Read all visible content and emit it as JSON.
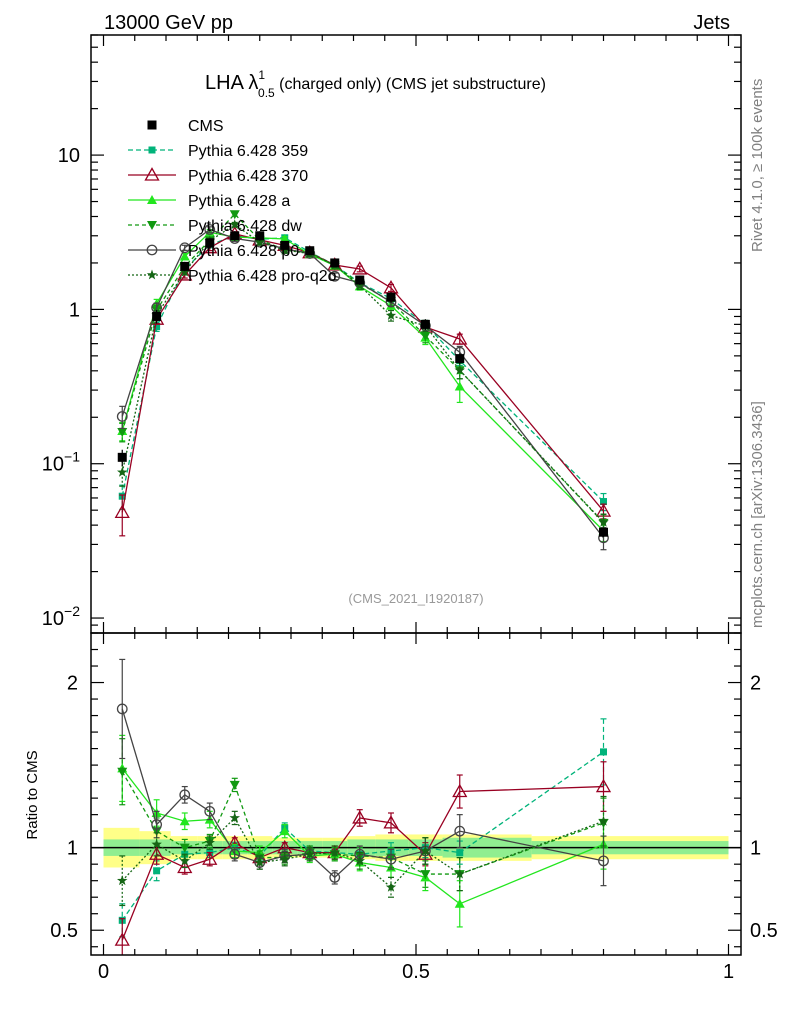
{
  "header": {
    "left": "13000 GeV pp",
    "right": "Jets"
  },
  "title": {
    "main": "LHA λ",
    "sup": "1",
    "sub": "0.5",
    "suffix": " (charged only) (CMS jet substructure)"
  },
  "side": {
    "rivet": "Rivet 4.1.0, ≥ 100k events",
    "mcplots": "mcplots.cern.ch [arXiv:1306.3436]"
  },
  "watermark": "(CMS_2021_I1920187)",
  "ratio_ylabel": "Ratio to CMS",
  "chart_data": {
    "type": "line",
    "title": "LHA λ^1_0.5 (charged only) (CMS jet substructure)",
    "x": [
      0.03,
      0.085,
      0.13,
      0.17,
      0.21,
      0.25,
      0.29,
      0.33,
      0.37,
      0.41,
      0.46,
      0.515,
      0.57,
      0.8
    ],
    "xlim": [
      -0.02,
      1.02
    ],
    "xticks": [
      {
        "v": 0,
        "label": "0"
      },
      {
        "v": 0.5,
        "label": "0.5"
      },
      {
        "v": 1,
        "label": "1"
      }
    ],
    "main_ylim": [
      0.008,
      60
    ],
    "main_yscale": "log",
    "main_yticks": [
      {
        "v": 0.01,
        "base": "10",
        "exp": "−2"
      },
      {
        "v": 0.1,
        "base": "10",
        "exp": "−1"
      },
      {
        "v": 1,
        "base": "1",
        "exp": ""
      },
      {
        "v": 10,
        "base": "10",
        "exp": ""
      }
    ],
    "ratio_ylim": [
      0.35,
      2.3
    ],
    "ratio_yticks": [
      {
        "v": 0.5,
        "label": "0.5"
      },
      {
        "v": 1,
        "label": "1"
      },
      {
        "v": 2,
        "label": "2"
      }
    ],
    "data": {
      "name": "CMS",
      "values": [
        0.11,
        0.9,
        1.9,
        2.7,
        3.0,
        3.0,
        2.6,
        2.4,
        2.0,
        1.55,
        1.2,
        0.8,
        0.48,
        0.036
      ],
      "band_inner": [
        0.05,
        0.05,
        0.04,
        0.04,
        0.04,
        0.04,
        0.04,
        0.04,
        0.04,
        0.05,
        0.05,
        0.05,
        0.06,
        0.04
      ],
      "band_outer": [
        0.12,
        0.1,
        0.07,
        0.07,
        0.07,
        0.07,
        0.06,
        0.06,
        0.06,
        0.07,
        0.08,
        0.08,
        0.08,
        0.07
      ]
    },
    "series": [
      {
        "name": "Pythia 6.428 359",
        "color": "#00b37a",
        "marker": "square-small",
        "dash": "5,3",
        "ratio": [
          0.56,
          0.86,
          0.96,
          0.97,
          1.0,
          0.95,
          1.12,
          0.98,
          0.97,
          0.96,
          0.98,
          1.0,
          0.97,
          1.58
        ],
        "err": [
          0.1,
          0.06,
          0.04,
          0.03,
          0.03,
          0.03,
          0.03,
          0.03,
          0.03,
          0.04,
          0.05,
          0.06,
          0.07,
          0.2
        ]
      },
      {
        "name": "Pythia 6.428 370",
        "color": "#990022",
        "marker": "open-triangle",
        "dash": "",
        "ratio": [
          0.44,
          0.96,
          0.88,
          0.93,
          1.03,
          0.94,
          1.0,
          0.97,
          0.97,
          1.18,
          1.15,
          0.96,
          1.34,
          1.37
        ],
        "err": [
          0.13,
          0.06,
          0.04,
          0.04,
          0.03,
          0.03,
          0.03,
          0.03,
          0.04,
          0.05,
          0.06,
          0.07,
          0.1,
          0.15
        ]
      },
      {
        "name": "Pythia 6.428 a",
        "color": "#22e61e",
        "marker": "triangle",
        "dash": "",
        "ratio": [
          1.48,
          1.21,
          1.16,
          1.17,
          0.98,
          0.97,
          1.1,
          0.95,
          0.96,
          0.91,
          0.88,
          0.82,
          0.66,
          1.02
        ],
        "err": [
          0.2,
          0.08,
          0.05,
          0.05,
          0.04,
          0.04,
          0.04,
          0.04,
          0.04,
          0.05,
          0.06,
          0.08,
          0.14,
          0.15
        ]
      },
      {
        "name": "Pythia 6.428 dw",
        "color": "#119911",
        "marker": "inv-triangle",
        "dash": "4,3",
        "ratio": [
          1.46,
          1.1,
          1.0,
          1.04,
          1.38,
          0.94,
          0.94,
          0.97,
          0.96,
          0.95,
          0.94,
          0.84,
          0.84,
          1.15
        ],
        "err": [
          0.2,
          0.08,
          0.05,
          0.04,
          0.04,
          0.04,
          0.04,
          0.04,
          0.04,
          0.05,
          0.06,
          0.08,
          0.1,
          0.15
        ]
      },
      {
        "name": "Pythia 6.428 p0",
        "color": "#444444",
        "marker": "open-circle",
        "dash": "",
        "ratio": [
          1.84,
          1.14,
          1.32,
          1.22,
          0.96,
          0.91,
          0.95,
          0.96,
          0.82,
          0.96,
          0.93,
          0.98,
          1.1,
          0.92
        ],
        "err": [
          0.3,
          0.08,
          0.05,
          0.05,
          0.04,
          0.04,
          0.04,
          0.04,
          0.04,
          0.05,
          0.06,
          0.08,
          0.1,
          0.15
        ]
      },
      {
        "name": "Pythia 6.428 pro-q2o",
        "color": "#156615",
        "marker": "star",
        "dash": "2,2",
        "ratio": [
          0.8,
          1.02,
          0.92,
          1.03,
          1.18,
          0.91,
          0.93,
          0.96,
          0.97,
          0.92,
          0.76,
          0.98,
          0.84,
          1.16
        ],
        "err": [
          0.15,
          0.07,
          0.04,
          0.04,
          0.04,
          0.04,
          0.04,
          0.04,
          0.04,
          0.05,
          0.06,
          0.08,
          0.1,
          0.15
        ]
      }
    ]
  }
}
